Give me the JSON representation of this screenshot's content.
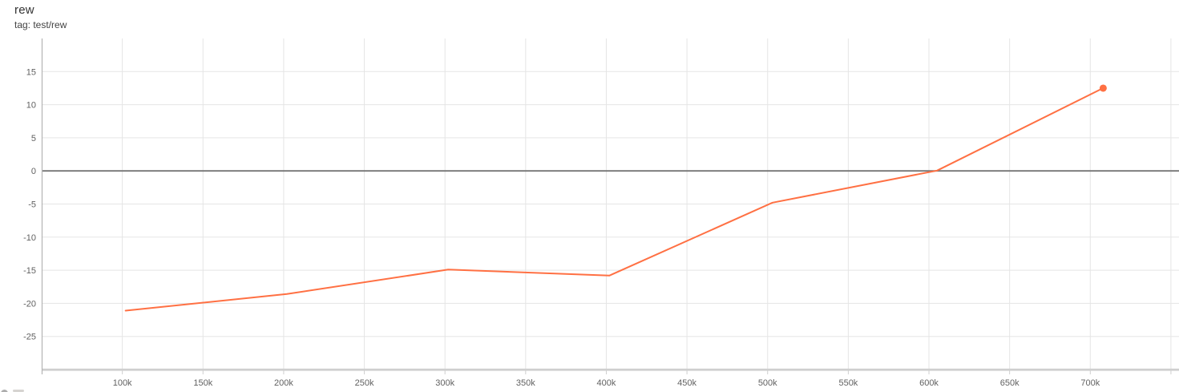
{
  "header": {
    "title": "rew",
    "subtitle": "tag: test/rew"
  },
  "colors": {
    "series": "#ff7043",
    "grid": "#e5e5e5",
    "zero_line": "#757575",
    "axis_line": "#b3b3b3",
    "baseline": "#cfcfcf",
    "tick_text": "#616161",
    "title_text": "#333333"
  },
  "chart_data": {
    "type": "line",
    "title": "rew",
    "tag": "test/rew",
    "xlabel": "",
    "ylabel": "",
    "xlim": [
      50000,
      755000
    ],
    "ylim": [
      -30,
      20
    ],
    "grid": true,
    "legend": "none",
    "series": [
      {
        "name": "test/rew",
        "color": "#ff7043",
        "end_marker": true,
        "points": [
          [
            102000,
            -21.1
          ],
          [
            202000,
            -18.6
          ],
          [
            302000,
            -14.9
          ],
          [
            402000,
            -15.8
          ],
          [
            503000,
            -4.8
          ],
          [
            605000,
            0.05
          ],
          [
            708000,
            12.5
          ]
        ]
      }
    ],
    "x_ticks": [
      {
        "value": 100000,
        "label": "100k"
      },
      {
        "value": 150000,
        "label": "150k"
      },
      {
        "value": 200000,
        "label": "200k"
      },
      {
        "value": 250000,
        "label": "250k"
      },
      {
        "value": 300000,
        "label": "300k"
      },
      {
        "value": 350000,
        "label": "350k"
      },
      {
        "value": 400000,
        "label": "400k"
      },
      {
        "value": 450000,
        "label": "450k"
      },
      {
        "value": 500000,
        "label": "500k"
      },
      {
        "value": 550000,
        "label": "550k"
      },
      {
        "value": 600000,
        "label": "600k"
      },
      {
        "value": 650000,
        "label": "650k"
      },
      {
        "value": 700000,
        "label": "700k"
      },
      {
        "value": 750000,
        "label": ""
      }
    ],
    "y_ticks": [
      {
        "value": 15,
        "label": "15"
      },
      {
        "value": 10,
        "label": "10"
      },
      {
        "value": 5,
        "label": "5"
      },
      {
        "value": 0,
        "label": "0"
      },
      {
        "value": -5,
        "label": "-5"
      },
      {
        "value": -10,
        "label": "-10"
      },
      {
        "value": -15,
        "label": "-15"
      },
      {
        "value": -20,
        "label": "-20"
      },
      {
        "value": -25,
        "label": "-25"
      }
    ],
    "zero_line": true
  }
}
